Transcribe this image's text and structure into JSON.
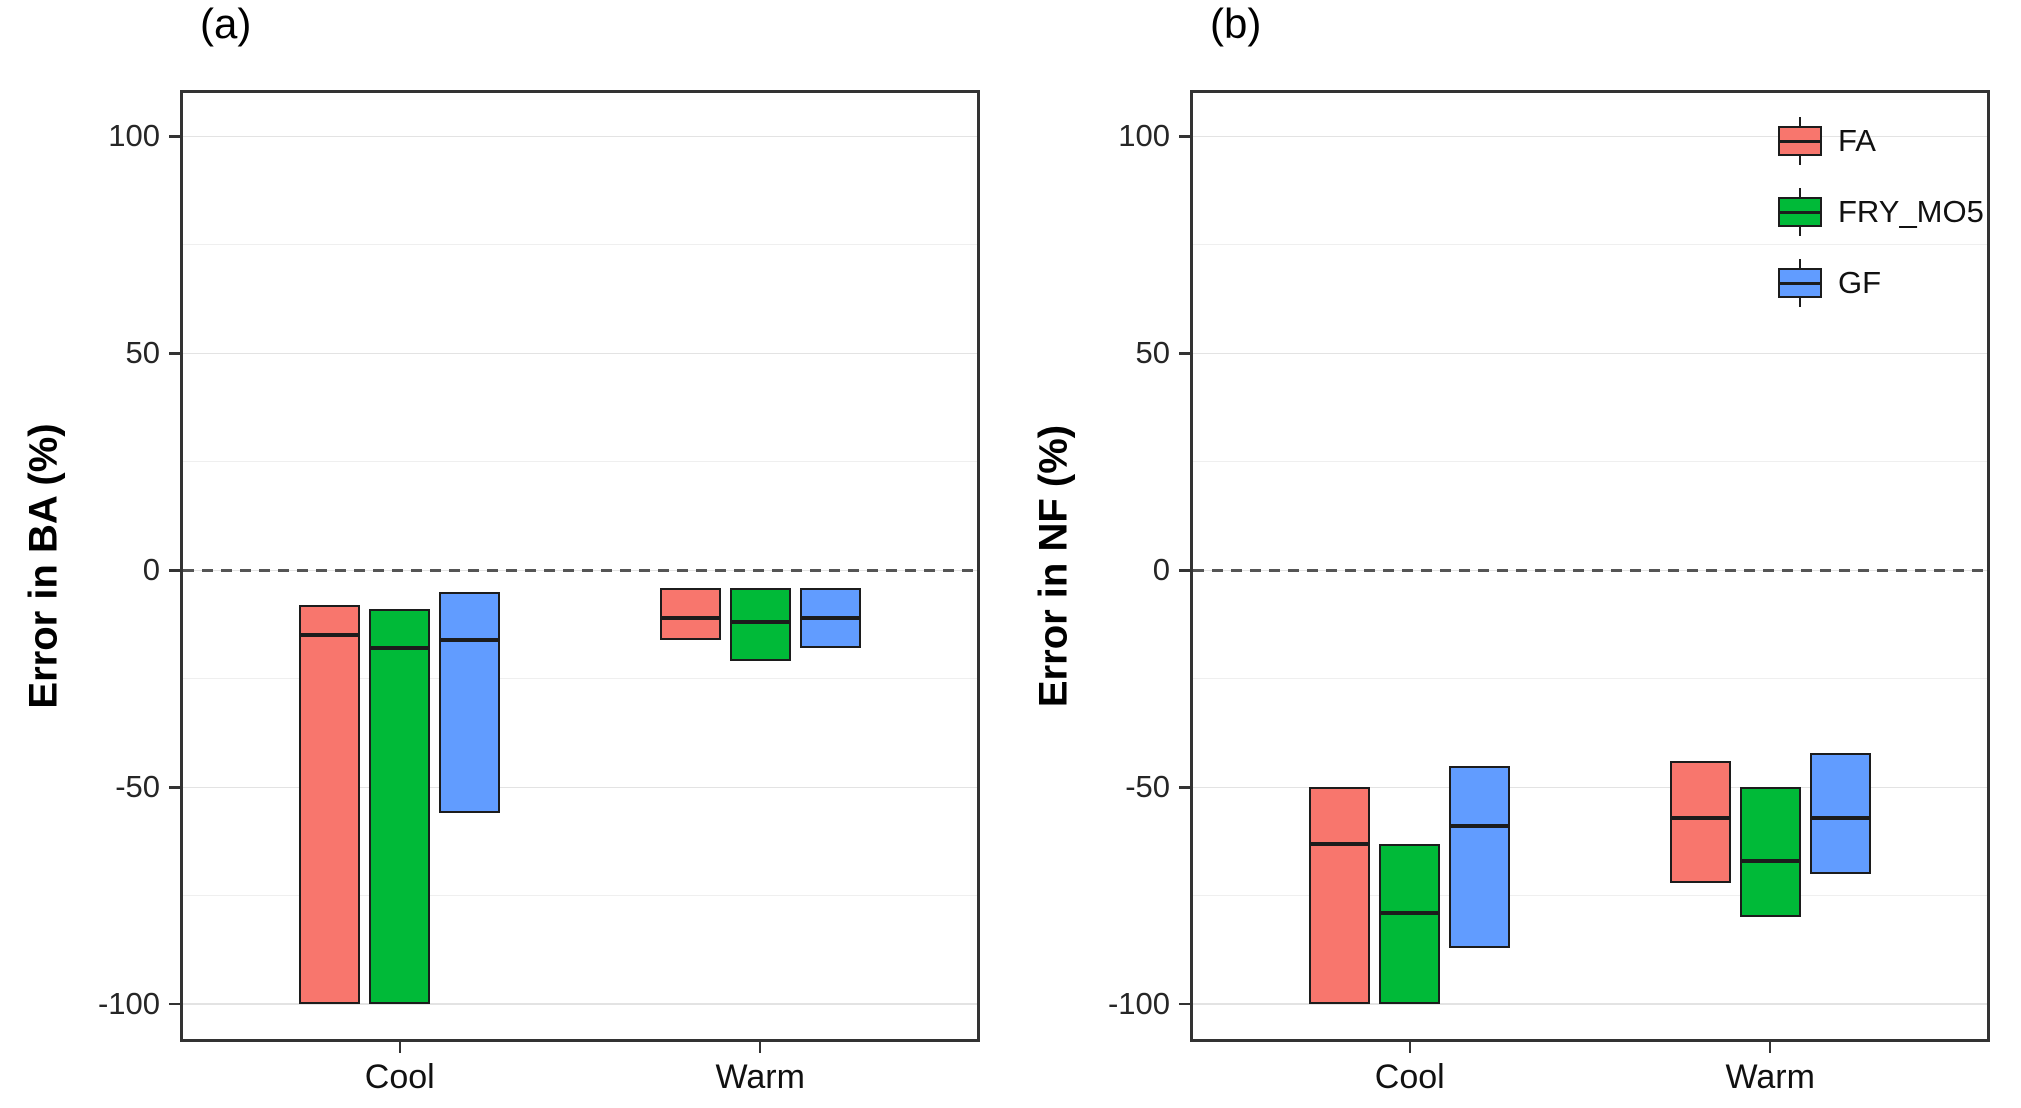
{
  "chart_data": [
    {
      "type": "boxplot",
      "panel_label": "(a)",
      "title": "",
      "xlabel": "",
      "ylabel": "Error in BA (%)",
      "categories": [
        "Cool",
        "Warm"
      ],
      "ylim": [
        -108,
        110
      ],
      "yticks": [
        -100,
        -50,
        0,
        50,
        100
      ],
      "yticks_minor": [
        -75,
        -25,
        25,
        75
      ],
      "grid": true,
      "reference_line_y": 0,
      "legend": false,
      "series": [
        {
          "name": "FA",
          "color": "#F8766D",
          "boxes": [
            {
              "category": "Cool",
              "lower": -100,
              "median": -15,
              "upper": -8
            },
            {
              "category": "Warm",
              "lower": -16,
              "median": -11,
              "upper": -4
            }
          ]
        },
        {
          "name": "FRY_MO5",
          "color": "#00BA38",
          "boxes": [
            {
              "category": "Cool",
              "lower": -100,
              "median": -18,
              "upper": -9
            },
            {
              "category": "Warm",
              "lower": -21,
              "median": -12,
              "upper": -4
            }
          ]
        },
        {
          "name": "GF",
          "color": "#619CFF",
          "boxes": [
            {
              "category": "Cool",
              "lower": -56,
              "median": -16,
              "upper": -5
            },
            {
              "category": "Warm",
              "lower": -18,
              "median": -11,
              "upper": -4
            }
          ]
        }
      ]
    },
    {
      "type": "boxplot",
      "panel_label": "(b)",
      "title": "",
      "xlabel": "",
      "ylabel": "Error in NF (%)",
      "categories": [
        "Cool",
        "Warm"
      ],
      "ylim": [
        -108,
        110
      ],
      "yticks": [
        -100,
        -50,
        0,
        50,
        100
      ],
      "yticks_minor": [
        -75,
        -25,
        25,
        75
      ],
      "grid": true,
      "reference_line_y": 0,
      "legend": true,
      "legend_position": "top-right",
      "series": [
        {
          "name": "FA",
          "color": "#F8766D",
          "boxes": [
            {
              "category": "Cool",
              "lower": -100,
              "median": -63,
              "upper": -50
            },
            {
              "category": "Warm",
              "lower": -72,
              "median": -57,
              "upper": -44
            }
          ]
        },
        {
          "name": "FRY_MO5",
          "color": "#00BA38",
          "boxes": [
            {
              "category": "Cool",
              "lower": -100,
              "median": -79,
              "upper": -63
            },
            {
              "category": "Warm",
              "lower": -80,
              "median": -67,
              "upper": -50
            }
          ]
        },
        {
          "name": "GF",
          "color": "#619CFF",
          "boxes": [
            {
              "category": "Cool",
              "lower": -87,
              "median": -59,
              "upper": -45
            },
            {
              "category": "Warm",
              "lower": -70,
              "median": -57,
              "upper": -42
            }
          ]
        }
      ]
    }
  ]
}
